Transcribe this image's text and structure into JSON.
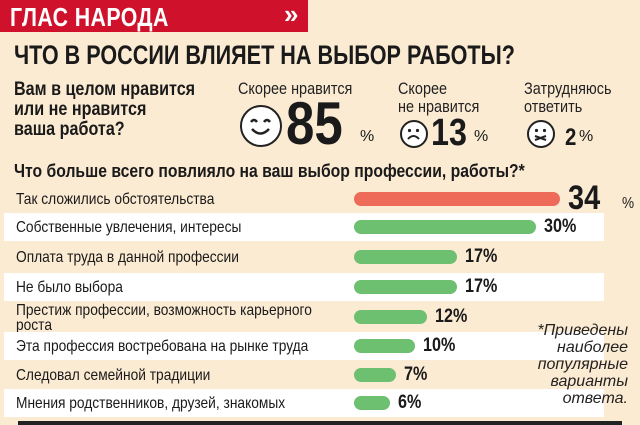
{
  "header": {
    "section": "ГЛАС НАРОДА",
    "chevron": "»"
  },
  "title": "ЧТО В РОССИИ ВЛИЯЕТ НА ВЫБОР РАБОТЫ?",
  "question1": {
    "text_lines": [
      "Вам в целом нравится",
      "или не нравится",
      "ваша работа?"
    ],
    "answers": [
      {
        "label_lines": [
          "Скорее нравится"
        ],
        "value": "85",
        "unit": "%",
        "icon": "smiling-face-icon"
      },
      {
        "label_lines": [
          "Скорее",
          "не нравится"
        ],
        "value": "13",
        "unit": "%",
        "icon": "sad-face-icon"
      },
      {
        "label_lines": [
          "Затрудняюсь",
          "ответить"
        ],
        "value": "2",
        "unit": "%",
        "icon": "confused-face-icon"
      }
    ]
  },
  "chart_data": {
    "type": "bar",
    "title": "Что больше всего повлияло на ваш выбор профессии, работы?*",
    "categories": [
      "Так сложились обстоятельства",
      "Собственные увлечения, интересы",
      "Оплата труда в данной профессии",
      "Не было выбора",
      "Престиж профессии, возможность карьерного роста",
      "Эта профессия востребована на рынке труда",
      "Следовал семейной традиции",
      "Мнения родственников, друзей, знакомых"
    ],
    "values": [
      34,
      30,
      17,
      17,
      12,
      10,
      7,
      6
    ],
    "value_labels": [
      "34",
      "30%",
      "17%",
      "17%",
      "12%",
      "10%",
      "7%",
      "6%"
    ],
    "colors": {
      "highlight": "#ee6b5a",
      "default": "#6cc070"
    },
    "orientation": "horizontal"
  },
  "label_lines": {
    "4": [
      "Престиж профессии, возможность карьерного",
      "роста"
    ]
  },
  "percent_sign": "%",
  "footnote_lines": [
    "*Приведены",
    "наиболее",
    "популярные",
    "варианты",
    "ответа."
  ]
}
